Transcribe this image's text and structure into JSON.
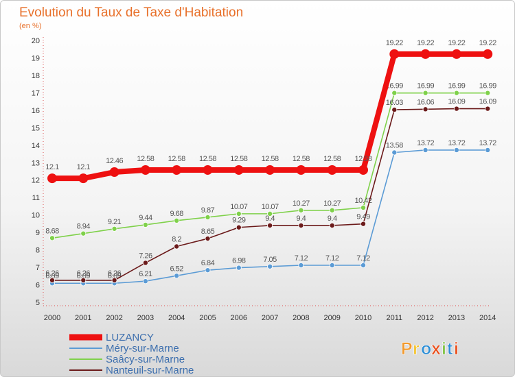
{
  "chart_data": {
    "type": "line",
    "title": "Evolution du Taux de Taxe d'Habitation",
    "ylabel": "(en %)",
    "xlabel": "",
    "ylim": [
      5,
      20
    ],
    "yticks": [
      5,
      6,
      7,
      8,
      9,
      10,
      11,
      12,
      13,
      14,
      15,
      16,
      17,
      18,
      19,
      20
    ],
    "categories": [
      "2000",
      "2001",
      "2002",
      "2003",
      "2004",
      "2005",
      "2006",
      "2007",
      "2008",
      "2009",
      "2010",
      "2011",
      "2012",
      "2013",
      "2014"
    ],
    "series": [
      {
        "name": "LUZANCY",
        "color": "#ee1111",
        "values": [
          12.1,
          12.1,
          12.46,
          12.58,
          12.58,
          12.58,
          12.58,
          12.58,
          12.58,
          12.58,
          12.58,
          19.22,
          19.22,
          19.22,
          19.22
        ],
        "labels": [
          "12.1",
          "12.1",
          "12.46",
          "12.58",
          "12.58",
          "12.58",
          "12.58",
          "12.58",
          "12.58",
          "12.58",
          "12.58",
          "19.22",
          "19.22",
          "19.22",
          "19.22"
        ]
      },
      {
        "name": "Méry-sur-Marne",
        "color": "#5b9bd5",
        "values": [
          6.09,
          6.09,
          6.09,
          6.21,
          6.52,
          6.84,
          6.98,
          7.05,
          7.12,
          7.12,
          7.12,
          13.58,
          13.72,
          13.72,
          13.72
        ],
        "labels": [
          "6.09",
          "6.09",
          "6.09",
          "6.21",
          "6.52",
          "6.84",
          "6.98",
          "7.05",
          "7.12",
          "7.12",
          "7.12",
          "13.58",
          "13.72",
          "13.72",
          "13.72"
        ]
      },
      {
        "name": "Saâcy-sur-Marne",
        "color": "#7fd14a",
        "values": [
          8.68,
          8.94,
          9.21,
          9.44,
          9.68,
          9.87,
          10.07,
          10.07,
          10.27,
          10.27,
          10.42,
          16.99,
          16.99,
          16.99,
          16.99
        ],
        "labels": [
          "8.68",
          "8.94",
          "9.21",
          "9.44",
          "9.68",
          "9.87",
          "10.07",
          "10.07",
          "10.27",
          "10.27",
          "10.42",
          "16.99",
          "16.99",
          "16.99",
          "16.99"
        ]
      },
      {
        "name": "Nanteuil-sur-Marne",
        "color": "#6b1a1a",
        "values": [
          6.26,
          6.26,
          6.26,
          7.26,
          8.2,
          8.65,
          9.29,
          9.4,
          9.4,
          9.4,
          9.49,
          16.03,
          16.06,
          16.09,
          16.09
        ],
        "labels": [
          "6.26",
          "6.26",
          "6.26",
          "7.26",
          "8.2",
          "8.65",
          "9.29",
          "9.4",
          "9.4",
          "9.4",
          "9.49",
          "16.03",
          "16.06",
          "16.09",
          "16.09"
        ]
      }
    ],
    "legend_position": "bottom-left",
    "grid": false
  },
  "brand": {
    "letters": [
      "P",
      "r",
      "o",
      "x",
      "i",
      "t",
      "i"
    ],
    "colors": [
      "#f29a2e",
      "#f4c430",
      "#2e8fd6",
      "#e94e1b",
      "#7ec242",
      "#2e8fd6",
      "#e94e1b"
    ]
  }
}
